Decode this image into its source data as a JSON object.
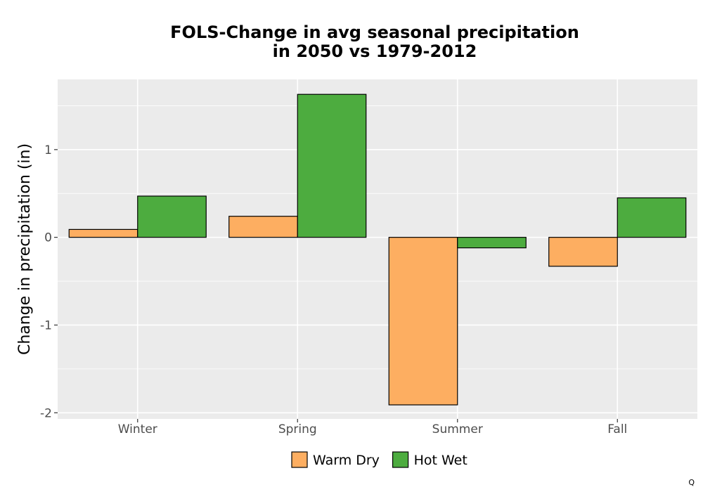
{
  "chart_data": {
    "type": "bar",
    "title": "FOLS-Change in avg seasonal precipitation\nin 2050 vs 1979-2012",
    "xlabel": "",
    "ylabel": "Change in precipitation (in)",
    "categories": [
      "Winter",
      "Spring",
      "Summer",
      "Fall"
    ],
    "series": [
      {
        "name": "Warm Dry",
        "values": [
          0.09,
          0.24,
          -1.91,
          -0.33
        ],
        "color": "#fdae61"
      },
      {
        "name": "Hot Wet",
        "values": [
          0.47,
          1.63,
          -0.12,
          0.45
        ],
        "color": "#4dac3f"
      }
    ],
    "ylim": [
      -2.07,
      1.8
    ],
    "yticks": [
      -2,
      -1,
      0,
      1
    ],
    "ytick_labels": [
      "-2",
      "-1",
      "0",
      "1"
    ],
    "grid": true,
    "legend_position": "bottom",
    "panel_background": "#ebebeb",
    "bar_outline": "#000000"
  },
  "corner_mark": "Q"
}
